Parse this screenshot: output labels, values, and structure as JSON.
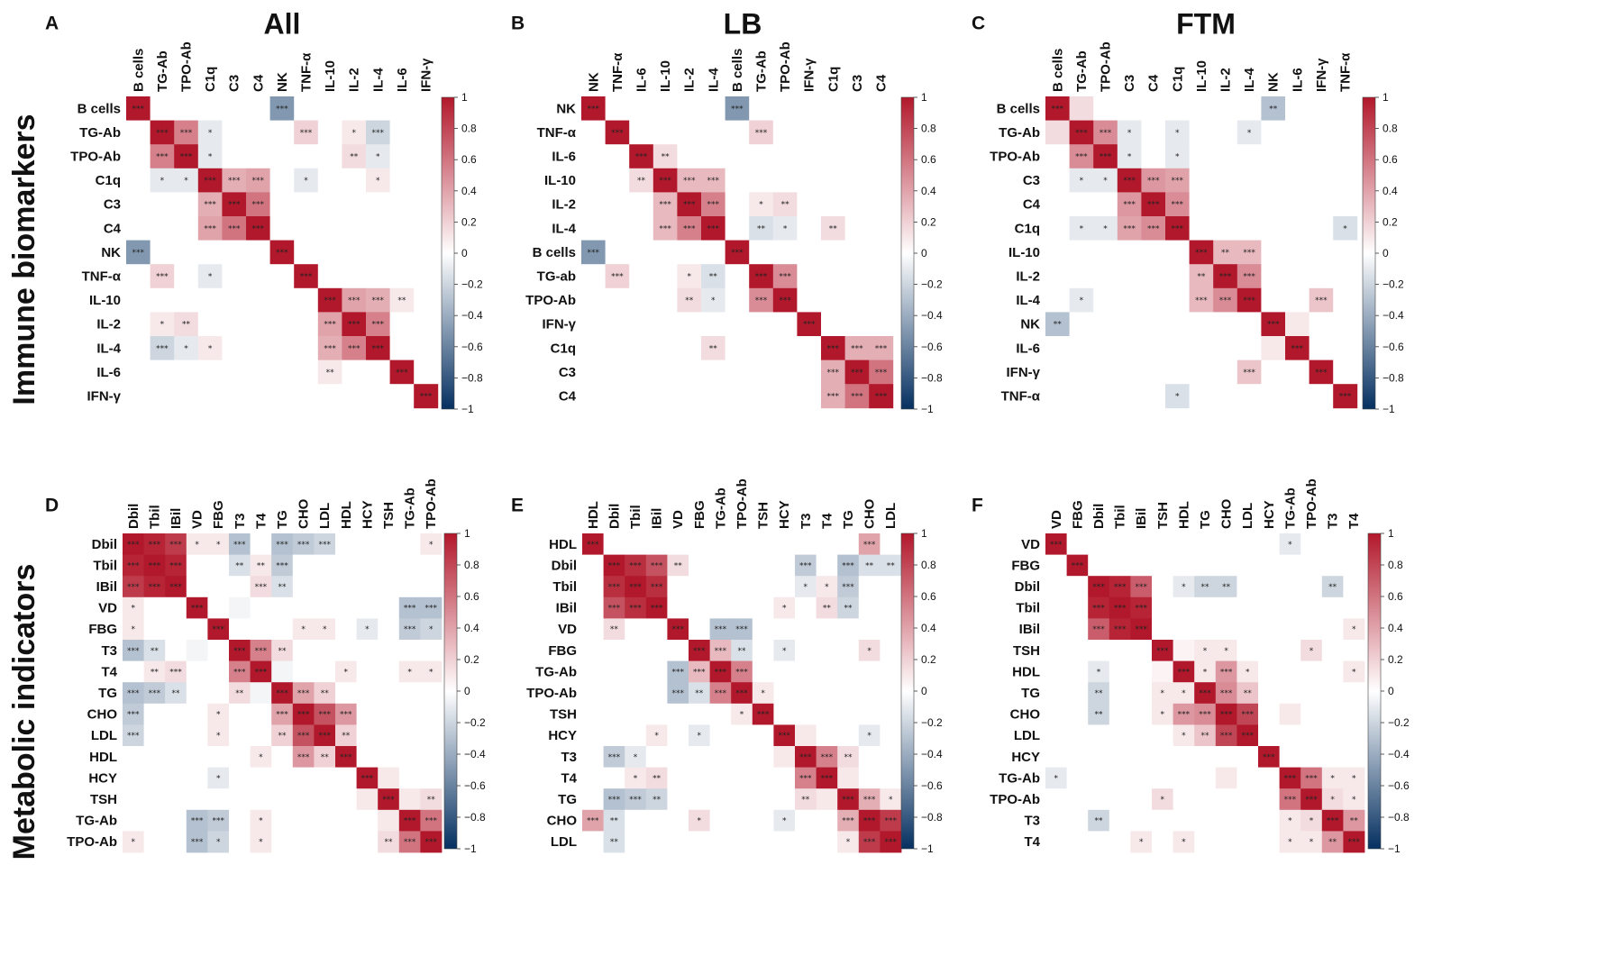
{
  "figure": {
    "row_titles": [
      "Immune biomarkers",
      "Metabolic indicators"
    ],
    "colors": {
      "negative": "#053061",
      "zero": "#ffffff",
      "positive": "#b2182b",
      "text": "#111111"
    },
    "colorbar_ticks": [
      "1",
      "0.8",
      "0.6",
      "0.4",
      "0.2",
      "0",
      "−0.2",
      "−0.4",
      "−0.6",
      "−0.8",
      "−1"
    ]
  },
  "chart_data": [
    {
      "type": "heatmap",
      "panel": "A",
      "title": "All",
      "zlim": [
        -1,
        1
      ],
      "variables": [
        "B cells",
        "TG-Ab",
        "TPO-Ab",
        "C1q",
        "C3",
        "C4",
        "NK",
        "TNF-α",
        "IL-10",
        "IL-2",
        "IL-4",
        "IL-6",
        "IFN-γ"
      ],
      "correlations": [
        {
          "a": "B cells",
          "b": "NK",
          "r": -0.5,
          "sig": "***"
        },
        {
          "a": "TG-Ab",
          "b": "TPO-Ab",
          "r": 0.55,
          "sig": "***"
        },
        {
          "a": "TG-Ab",
          "b": "C1q",
          "r": -0.1,
          "sig": "*"
        },
        {
          "a": "TG-Ab",
          "b": "TNF-α",
          "r": 0.2,
          "sig": "***"
        },
        {
          "a": "TG-Ab",
          "b": "IL-2",
          "r": 0.1,
          "sig": "*"
        },
        {
          "a": "TG-Ab",
          "b": "IL-4",
          "r": -0.2,
          "sig": "***"
        },
        {
          "a": "TPO-Ab",
          "b": "C1q",
          "r": -0.1,
          "sig": "*"
        },
        {
          "a": "TPO-Ab",
          "b": "IL-2",
          "r": 0.15,
          "sig": "**"
        },
        {
          "a": "TPO-Ab",
          "b": "IL-4",
          "r": -0.1,
          "sig": "*"
        },
        {
          "a": "C1q",
          "b": "C3",
          "r": 0.35,
          "sig": "***"
        },
        {
          "a": "C1q",
          "b": "C4",
          "r": 0.4,
          "sig": "***"
        },
        {
          "a": "C1q",
          "b": "TNF-α",
          "r": -0.1,
          "sig": "*"
        },
        {
          "a": "C1q",
          "b": "IL-4",
          "r": 0.1,
          "sig": "*"
        },
        {
          "a": "C3",
          "b": "C4",
          "r": 0.6,
          "sig": "***"
        },
        {
          "a": "IL-10",
          "b": "IL-2",
          "r": 0.4,
          "sig": "***"
        },
        {
          "a": "IL-10",
          "b": "IL-4",
          "r": 0.35,
          "sig": "***"
        },
        {
          "a": "IL-10",
          "b": "IL-6",
          "r": 0.1,
          "sig": "**"
        },
        {
          "a": "IL-2",
          "b": "IL-4",
          "r": 0.55,
          "sig": "***"
        }
      ]
    },
    {
      "type": "heatmap",
      "panel": "B",
      "title": "LB",
      "zlim": [
        -1,
        1
      ],
      "variables": [
        "NK",
        "TNF-α",
        "IL-6",
        "IL-10",
        "IL-2",
        "IL-4",
        "B cells",
        "TG-Ab",
        "TPO-Ab",
        "IFN-γ",
        "C1q",
        "C3",
        "C4"
      ],
      "row_variables": [
        "NK",
        "TNF-α",
        "IL-6",
        "IL-10",
        "IL-2",
        "IL-4",
        "B cells",
        "TG-ab",
        "TPO-Ab",
        "IFN-γ",
        "C1q",
        "C3",
        "C4"
      ],
      "correlations": [
        {
          "a": "NK",
          "b": "B cells",
          "r": -0.5,
          "sig": "***"
        },
        {
          "a": "TNF-α",
          "b": "TG-Ab",
          "r": 0.2,
          "sig": "***"
        },
        {
          "a": "IL-6",
          "b": "IL-10",
          "r": 0.15,
          "sig": "**"
        },
        {
          "a": "IL-10",
          "b": "IL-2",
          "r": 0.3,
          "sig": "***"
        },
        {
          "a": "IL-10",
          "b": "IL-4",
          "r": 0.3,
          "sig": "***"
        },
        {
          "a": "IL-2",
          "b": "IL-4",
          "r": 0.55,
          "sig": "***"
        },
        {
          "a": "IL-2",
          "b": "TG-Ab",
          "r": 0.1,
          "sig": "*"
        },
        {
          "a": "IL-2",
          "b": "TPO-Ab",
          "r": 0.15,
          "sig": "**"
        },
        {
          "a": "IL-4",
          "b": "TG-Ab",
          "r": -0.15,
          "sig": "**"
        },
        {
          "a": "IL-4",
          "b": "TPO-Ab",
          "r": -0.1,
          "sig": "*"
        },
        {
          "a": "IL-4",
          "b": "C1q",
          "r": 0.15,
          "sig": "**"
        },
        {
          "a": "TG-Ab",
          "b": "TPO-Ab",
          "r": 0.5,
          "sig": "***"
        },
        {
          "a": "C1q",
          "b": "C3",
          "r": 0.35,
          "sig": "***"
        },
        {
          "a": "C1q",
          "b": "C4",
          "r": 0.35,
          "sig": "***"
        },
        {
          "a": "C3",
          "b": "C4",
          "r": 0.6,
          "sig": "***"
        }
      ]
    },
    {
      "type": "heatmap",
      "panel": "C",
      "title": "FTM",
      "zlim": [
        -1,
        1
      ],
      "variables": [
        "B cells",
        "TG-Ab",
        "TPO-Ab",
        "C3",
        "C4",
        "C1q",
        "IL-10",
        "IL-2",
        "IL-4",
        "NK",
        "IL-6",
        "IFN-γ",
        "TNF-α"
      ],
      "correlations": [
        {
          "a": "B cells",
          "b": "NK",
          "r": -0.3,
          "sig": "**"
        },
        {
          "a": "B cells",
          "b": "TG-Ab",
          "r": 0.15,
          "sig": ""
        },
        {
          "a": "TG-Ab",
          "b": "TPO-Ab",
          "r": 0.5,
          "sig": "***"
        },
        {
          "a": "TG-Ab",
          "b": "C1q",
          "r": -0.1,
          "sig": "*"
        },
        {
          "a": "TG-Ab",
          "b": "IL-4",
          "r": -0.1,
          "sig": "*"
        },
        {
          "a": "TPO-Ab",
          "b": "C1q",
          "r": -0.1,
          "sig": "*"
        },
        {
          "a": "TG-Ab",
          "b": "C3",
          "r": -0.1,
          "sig": "*"
        },
        {
          "a": "TPO-Ab",
          "b": "C3",
          "r": -0.1,
          "sig": "*"
        },
        {
          "a": "C3",
          "b": "C4",
          "r": 0.45,
          "sig": "***"
        },
        {
          "a": "C3",
          "b": "C1q",
          "r": 0.4,
          "sig": "***"
        },
        {
          "a": "C4",
          "b": "C1q",
          "r": 0.5,
          "sig": "***"
        },
        {
          "a": "C1q",
          "b": "TNF-α",
          "r": -0.15,
          "sig": "*"
        },
        {
          "a": "IL-10",
          "b": "IL-2",
          "r": 0.3,
          "sig": "**"
        },
        {
          "a": "IL-10",
          "b": "IL-4",
          "r": 0.3,
          "sig": "***"
        },
        {
          "a": "IL-2",
          "b": "IL-4",
          "r": 0.5,
          "sig": "***"
        },
        {
          "a": "IL-4",
          "b": "IFN-γ",
          "r": 0.25,
          "sig": "***"
        },
        {
          "a": "NK",
          "b": "IL-6",
          "r": 0.1,
          "sig": ""
        }
      ]
    },
    {
      "type": "heatmap",
      "panel": "D",
      "title": "",
      "zlim": [
        -1,
        1
      ],
      "variables": [
        "Dbil",
        "Tbil",
        "IBil",
        "VD",
        "FBG",
        "T3",
        "T4",
        "TG",
        "CHO",
        "LDL",
        "HDL",
        "HCY",
        "TSH",
        "TG-Ab",
        "TPO-Ab"
      ],
      "correlations": [
        {
          "a": "Dbil",
          "b": "Tbil",
          "r": 0.95,
          "sig": "***"
        },
        {
          "a": "Dbil",
          "b": "IBil",
          "r": 0.85,
          "sig": "***"
        },
        {
          "a": "Tbil",
          "b": "IBil",
          "r": 0.95,
          "sig": "***"
        },
        {
          "a": "Dbil",
          "b": "VD",
          "r": 0.1,
          "sig": "*"
        },
        {
          "a": "Dbil",
          "b": "FBG",
          "r": 0.1,
          "sig": "*"
        },
        {
          "a": "Dbil",
          "b": "T3",
          "r": -0.3,
          "sig": "***"
        },
        {
          "a": "Dbil",
          "b": "TG",
          "r": -0.3,
          "sig": "***"
        },
        {
          "a": "Dbil",
          "b": "CHO",
          "r": -0.25,
          "sig": "***"
        },
        {
          "a": "Dbil",
          "b": "LDL",
          "r": -0.2,
          "sig": "***"
        },
        {
          "a": "Dbil",
          "b": "TPO-Ab",
          "r": 0.1,
          "sig": "*"
        },
        {
          "a": "Tbil",
          "b": "T3",
          "r": -0.15,
          "sig": "**"
        },
        {
          "a": "Tbil",
          "b": "T4",
          "r": 0.1,
          "sig": "**"
        },
        {
          "a": "Tbil",
          "b": "TG",
          "r": -0.25,
          "sig": "***"
        },
        {
          "a": "IBil",
          "b": "T4",
          "r": 0.15,
          "sig": "***"
        },
        {
          "a": "IBil",
          "b": "TG",
          "r": -0.15,
          "sig": "**"
        },
        {
          "a": "VD",
          "b": "TG-Ab",
          "r": -0.3,
          "sig": "***"
        },
        {
          "a": "VD",
          "b": "TPO-Ab",
          "r": -0.3,
          "sig": "***"
        },
        {
          "a": "VD",
          "b": "T3",
          "r": -0.05,
          "sig": ""
        },
        {
          "a": "FBG",
          "b": "CHO",
          "r": 0.1,
          "sig": "*"
        },
        {
          "a": "FBG",
          "b": "LDL",
          "r": 0.1,
          "sig": "*"
        },
        {
          "a": "FBG",
          "b": "HCY",
          "r": -0.1,
          "sig": "*"
        },
        {
          "a": "FBG",
          "b": "TG-Ab",
          "r": -0.25,
          "sig": "***"
        },
        {
          "a": "FBG",
          "b": "TPO-Ab",
          "r": -0.2,
          "sig": "*"
        },
        {
          "a": "T3",
          "b": "T4",
          "r": 0.55,
          "sig": "***"
        },
        {
          "a": "T3",
          "b": "TG",
          "r": 0.15,
          "sig": "**"
        },
        {
          "a": "T4",
          "b": "TG",
          "r": -0.05,
          "sig": ""
        },
        {
          "a": "T4",
          "b": "HDL",
          "r": 0.1,
          "sig": "*"
        },
        {
          "a": "T4",
          "b": "TG-Ab",
          "r": 0.1,
          "sig": "*"
        },
        {
          "a": "T4",
          "b": "TPO-Ab",
          "r": 0.1,
          "sig": "*"
        },
        {
          "a": "TG",
          "b": "CHO",
          "r": 0.4,
          "sig": "***"
        },
        {
          "a": "TG",
          "b": "LDL",
          "r": 0.2,
          "sig": "**"
        },
        {
          "a": "CHO",
          "b": "LDL",
          "r": 0.75,
          "sig": "***"
        },
        {
          "a": "CHO",
          "b": "HDL",
          "r": 0.45,
          "sig": "***"
        },
        {
          "a": "LDL",
          "b": "HDL",
          "r": 0.2,
          "sig": "**"
        },
        {
          "a": "TSH",
          "b": "TPO-Ab",
          "r": 0.15,
          "sig": "**"
        },
        {
          "a": "TSH",
          "b": "TG-Ab",
          "r": 0.1,
          "sig": ""
        },
        {
          "a": "TG-Ab",
          "b": "TPO-Ab",
          "r": 0.6,
          "sig": "***"
        },
        {
          "a": "HCY",
          "b": "TSH",
          "r": 0.1,
          "sig": ""
        }
      ]
    },
    {
      "type": "heatmap",
      "panel": "E",
      "title": "",
      "zlim": [
        -1,
        1
      ],
      "variables": [
        "HDL",
        "Dbil",
        "Tbil",
        "IBil",
        "VD",
        "FBG",
        "TG-Ab",
        "TPO-Ab",
        "TSH",
        "HCY",
        "T3",
        "T4",
        "TG",
        "CHO",
        "LDL"
      ],
      "correlations": [
        {
          "a": "HDL",
          "b": "CHO",
          "r": 0.4,
          "sig": "***"
        },
        {
          "a": "Dbil",
          "b": "Tbil",
          "r": 0.9,
          "sig": "***"
        },
        {
          "a": "Dbil",
          "b": "IBil",
          "r": 0.75,
          "sig": "***"
        },
        {
          "a": "Tbil",
          "b": "IBil",
          "r": 0.9,
          "sig": "***"
        },
        {
          "a": "Dbil",
          "b": "VD",
          "r": 0.15,
          "sig": "**"
        },
        {
          "a": "Dbil",
          "b": "T3",
          "r": -0.25,
          "sig": "***"
        },
        {
          "a": "Dbil",
          "b": "TG",
          "r": -0.3,
          "sig": "***"
        },
        {
          "a": "Dbil",
          "b": "CHO",
          "r": -0.15,
          "sig": "**"
        },
        {
          "a": "Dbil",
          "b": "LDL",
          "r": -0.15,
          "sig": "**"
        },
        {
          "a": "Tbil",
          "b": "T3",
          "r": -0.1,
          "sig": "*"
        },
        {
          "a": "Tbil",
          "b": "T4",
          "r": 0.1,
          "sig": "*"
        },
        {
          "a": "Tbil",
          "b": "TG",
          "r": -0.25,
          "sig": "***"
        },
        {
          "a": "IBil",
          "b": "T4",
          "r": 0.15,
          "sig": "**"
        },
        {
          "a": "IBil",
          "b": "TG",
          "r": -0.2,
          "sig": "**"
        },
        {
          "a": "IBil",
          "b": "HCY",
          "r": 0.1,
          "sig": "*"
        },
        {
          "a": "VD",
          "b": "TG-Ab",
          "r": -0.3,
          "sig": "***"
        },
        {
          "a": "VD",
          "b": "TPO-Ab",
          "r": -0.3,
          "sig": "***"
        },
        {
          "a": "FBG",
          "b": "TG-Ab",
          "r": 0.3,
          "sig": "***"
        },
        {
          "a": "FBG",
          "b": "TPO-Ab",
          "r": -0.15,
          "sig": "**"
        },
        {
          "a": "FBG",
          "b": "HCY",
          "r": -0.1,
          "sig": "*"
        },
        {
          "a": "FBG",
          "b": "CHO",
          "r": 0.15,
          "sig": "*"
        },
        {
          "a": "TG-Ab",
          "b": "TPO-Ab",
          "r": 0.55,
          "sig": "***"
        },
        {
          "a": "TPO-Ab",
          "b": "TSH",
          "r": 0.1,
          "sig": "*"
        },
        {
          "a": "HCY",
          "b": "CHO",
          "r": -0.1,
          "sig": "*"
        },
        {
          "a": "HCY",
          "b": "T3",
          "r": 0.1,
          "sig": ""
        },
        {
          "a": "T3",
          "b": "T4",
          "r": 0.55,
          "sig": "***"
        },
        {
          "a": "T3",
          "b": "TG",
          "r": 0.15,
          "sig": "**"
        },
        {
          "a": "T4",
          "b": "TG",
          "r": 0.1,
          "sig": ""
        },
        {
          "a": "TG",
          "b": "CHO",
          "r": 0.35,
          "sig": "***"
        },
        {
          "a": "TG",
          "b": "LDL",
          "r": 0.1,
          "sig": "*"
        },
        {
          "a": "CHO",
          "b": "LDL",
          "r": 0.85,
          "sig": "***"
        }
      ]
    },
    {
      "type": "heatmap",
      "panel": "F",
      "title": "",
      "zlim": [
        -1,
        1
      ],
      "variables": [
        "VD",
        "FBG",
        "Dbil",
        "Tbil",
        "IBil",
        "TSH",
        "HDL",
        "TG",
        "CHO",
        "LDL",
        "HCY",
        "TG-Ab",
        "TPO-Ab",
        "T3",
        "T4"
      ],
      "correlations": [
        {
          "a": "VD",
          "b": "TG-Ab",
          "r": -0.1,
          "sig": "*"
        },
        {
          "a": "Dbil",
          "b": "Tbil",
          "r": 0.95,
          "sig": "***"
        },
        {
          "a": "Dbil",
          "b": "IBil",
          "r": 0.7,
          "sig": "***"
        },
        {
          "a": "Tbil",
          "b": "IBil",
          "r": 0.95,
          "sig": "***"
        },
        {
          "a": "Dbil",
          "b": "HDL",
          "r": -0.1,
          "sig": "*"
        },
        {
          "a": "Dbil",
          "b": "TG",
          "r": -0.2,
          "sig": "**"
        },
        {
          "a": "Dbil",
          "b": "CHO",
          "r": -0.2,
          "sig": "**"
        },
        {
          "a": "Dbil",
          "b": "T3",
          "r": -0.2,
          "sig": "**"
        },
        {
          "a": "IBil",
          "b": "T4",
          "r": 0.1,
          "sig": "*"
        },
        {
          "a": "TSH",
          "b": "TG",
          "r": 0.1,
          "sig": "*"
        },
        {
          "a": "TSH",
          "b": "CHO",
          "r": 0.1,
          "sig": "*"
        },
        {
          "a": "TSH",
          "b": "TPO-Ab",
          "r": 0.15,
          "sig": "*"
        },
        {
          "a": "HDL",
          "b": "TG",
          "r": 0.1,
          "sig": "*"
        },
        {
          "a": "HDL",
          "b": "CHO",
          "r": 0.45,
          "sig": "***"
        },
        {
          "a": "HDL",
          "b": "LDL",
          "r": 0.1,
          "sig": "*"
        },
        {
          "a": "HDL",
          "b": "T4",
          "r": 0.1,
          "sig": "*"
        },
        {
          "a": "TG",
          "b": "CHO",
          "r": 0.5,
          "sig": "***"
        },
        {
          "a": "TG",
          "b": "LDL",
          "r": 0.25,
          "sig": "**"
        },
        {
          "a": "CHO",
          "b": "LDL",
          "r": 0.8,
          "sig": "***"
        },
        {
          "a": "CHO",
          "b": "TG-Ab",
          "r": 0.1,
          "sig": ""
        },
        {
          "a": "TG-Ab",
          "b": "TPO-Ab",
          "r": 0.6,
          "sig": "***"
        },
        {
          "a": "TG-Ab",
          "b": "T3",
          "r": 0.1,
          "sig": "*"
        },
        {
          "a": "TG-Ab",
          "b": "T4",
          "r": 0.1,
          "sig": "*"
        },
        {
          "a": "TPO-Ab",
          "b": "T3",
          "r": 0.15,
          "sig": "*"
        },
        {
          "a": "TPO-Ab",
          "b": "T4",
          "r": 0.1,
          "sig": "*"
        },
        {
          "a": "T3",
          "b": "T4",
          "r": 0.45,
          "sig": "**"
        },
        {
          "a": "TSH",
          "b": "HDL",
          "r": 0.05,
          "sig": ""
        }
      ]
    }
  ]
}
